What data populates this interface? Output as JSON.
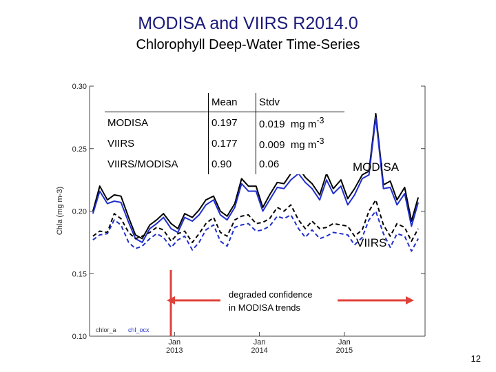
{
  "title": "MODISA and VIIRS R2014.0",
  "subtitle": "Chlorophyll Deep-Water Time-Series",
  "page_number": "12",
  "colors": {
    "modis": "#000000",
    "viirs": "#1f2ecc",
    "arrow": "#e0413a"
  },
  "stats_table": {
    "headers": [
      "",
      "Mean",
      "Stdv"
    ],
    "rows": [
      {
        "label": "MODISA",
        "mean": "0.197",
        "stdv": "0.019",
        "unit": "mg m",
        "exp": "-3"
      },
      {
        "label": "VIIRS",
        "mean": "0.177",
        "stdv": "0.009",
        "unit": "mg m",
        "exp": "-3"
      },
      {
        "label": "VIIRS/MODISA",
        "mean": "0.90",
        "stdv": "0.06",
        "unit": "",
        "exp": ""
      }
    ]
  },
  "chart_data": {
    "type": "line",
    "title": "MODISA and VIIRS R2014.0 Chlorophyll Deep-Water Time-Series",
    "ylabel": "Chla (mg m-3)",
    "ylim": [
      0.1,
      0.3
    ],
    "yticks": [
      "0.10",
      "0.15",
      "0.20",
      "0.25",
      "0.30"
    ],
    "xlim": [
      2012.0,
      2015.95
    ],
    "xticks": [
      {
        "x": 2013.0,
        "label": "Jan 2013"
      },
      {
        "x": 2014.0,
        "label": "Jan 2014"
      },
      {
        "x": 2015.0,
        "label": "Jan 2015"
      }
    ],
    "x": [
      2012.04,
      2012.12,
      2012.21,
      2012.29,
      2012.37,
      2012.46,
      2012.54,
      2012.62,
      2012.71,
      2012.79,
      2012.87,
      2012.96,
      2013.04,
      2013.12,
      2013.21,
      2013.29,
      2013.37,
      2013.46,
      2013.54,
      2013.62,
      2013.71,
      2013.79,
      2013.87,
      2013.96,
      2014.04,
      2014.12,
      2014.21,
      2014.29,
      2014.37,
      2014.46,
      2014.54,
      2014.62,
      2014.71,
      2014.79,
      2014.87,
      2014.96,
      2015.04,
      2015.12,
      2015.21,
      2015.29,
      2015.37,
      2015.46,
      2015.54,
      2015.62,
      2015.71,
      2015.79,
      2015.87
    ],
    "series": [
      {
        "name": "MODISA chlor_a",
        "style": "solid",
        "color": "modis",
        "values": [
          0.2,
          0.22,
          0.209,
          0.213,
          0.212,
          0.195,
          0.181,
          0.178,
          0.189,
          0.193,
          0.198,
          0.19,
          0.186,
          0.198,
          0.195,
          0.201,
          0.209,
          0.212,
          0.2,
          0.196,
          0.206,
          0.226,
          0.22,
          0.22,
          0.203,
          0.213,
          0.223,
          0.222,
          0.23,
          0.235,
          0.227,
          0.222,
          0.213,
          0.23,
          0.218,
          0.225,
          0.21,
          0.218,
          0.229,
          0.232,
          0.278,
          0.221,
          0.224,
          0.209,
          0.219,
          0.192,
          0.211
        ]
      },
      {
        "name": "VIIRS chl_ocx",
        "style": "solid",
        "color": "viirs",
        "values": [
          0.198,
          0.216,
          0.206,
          0.208,
          0.207,
          0.191,
          0.178,
          0.175,
          0.186,
          0.19,
          0.195,
          0.186,
          0.183,
          0.195,
          0.192,
          0.197,
          0.205,
          0.209,
          0.197,
          0.193,
          0.203,
          0.222,
          0.216,
          0.216,
          0.2,
          0.209,
          0.219,
          0.218,
          0.225,
          0.23,
          0.223,
          0.218,
          0.209,
          0.225,
          0.214,
          0.22,
          0.205,
          0.213,
          0.226,
          0.229,
          0.275,
          0.218,
          0.219,
          0.205,
          0.214,
          0.188,
          0.207
        ]
      },
      {
        "name": "MODISA mean",
        "style": "dashed",
        "color": "modis",
        "values": [
          0.18,
          0.184,
          0.183,
          0.198,
          0.194,
          0.183,
          0.178,
          0.18,
          0.183,
          0.187,
          0.185,
          0.176,
          0.182,
          0.184,
          0.175,
          0.182,
          0.19,
          0.195,
          0.183,
          0.18,
          0.193,
          0.196,
          0.197,
          0.19,
          0.191,
          0.194,
          0.203,
          0.2,
          0.205,
          0.193,
          0.186,
          0.192,
          0.186,
          0.187,
          0.19,
          0.189,
          0.188,
          0.18,
          0.185,
          0.2,
          0.209,
          0.189,
          0.18,
          0.19,
          0.187,
          0.176,
          0.186
        ]
      },
      {
        "name": "VIIRS mean",
        "style": "dashed",
        "color": "viirs",
        "values": [
          0.177,
          0.181,
          0.182,
          0.193,
          0.189,
          0.175,
          0.17,
          0.172,
          0.178,
          0.182,
          0.179,
          0.171,
          0.177,
          0.18,
          0.169,
          0.175,
          0.185,
          0.189,
          0.176,
          0.172,
          0.187,
          0.189,
          0.19,
          0.184,
          0.185,
          0.188,
          0.196,
          0.194,
          0.197,
          0.186,
          0.179,
          0.185,
          0.178,
          0.18,
          0.183,
          0.182,
          0.181,
          0.173,
          0.179,
          0.193,
          0.2,
          0.182,
          0.171,
          0.182,
          0.18,
          0.168,
          0.178
        ]
      }
    ],
    "annotations": {
      "modis_label": "MODISA",
      "viirs_label": "VIIRS",
      "note_line1": "degraded confidence",
      "note_line2": "in MODISA trends",
      "legend_left": "chlor_a",
      "legend_right": "chl_ocx"
    }
  }
}
